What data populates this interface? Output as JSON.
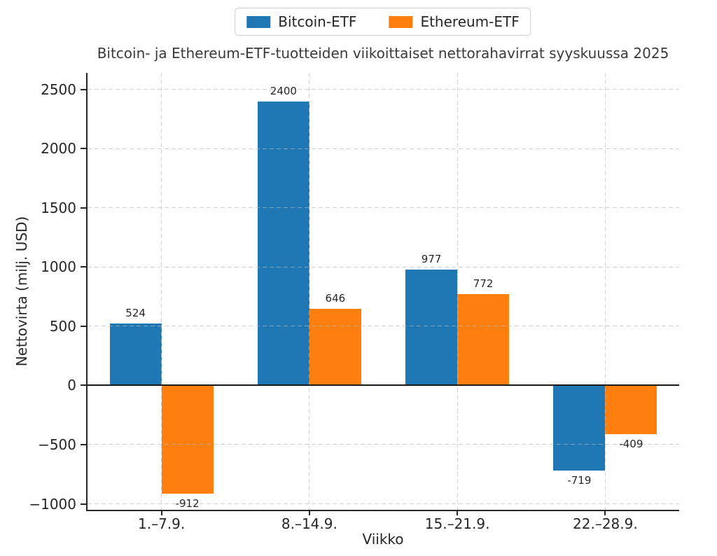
{
  "chart_data": {
    "type": "bar",
    "title": "Bitcoin- ja Ethereum-ETF-tuotteiden viikoittaiset nettorahavirrat syyskuussa 2025",
    "xlabel": "Viikko",
    "ylabel": "Nettovirta (milj. USD)",
    "categories": [
      "1.–7.9.",
      "8.–14.9.",
      "15.–21.9.",
      "22.–28.9."
    ],
    "series": [
      {
        "name": "Bitcoin-ETF",
        "color": "#1f77b4",
        "values": [
          524,
          2400,
          977,
          -719
        ]
      },
      {
        "name": "Ethereum-ETF",
        "color": "#ff7f0e",
        "values": [
          -912,
          646,
          772,
          -409
        ]
      }
    ],
    "yticks": [
      -1000,
      -500,
      0,
      500,
      1000,
      1500,
      2000,
      2500
    ],
    "ytick_labels": [
      "−1000",
      "−500",
      "0",
      "500",
      "1000",
      "1500",
      "2000",
      "2500"
    ],
    "ylim": [
      -1050,
      2640
    ],
    "grid": true,
    "grid_color": "#b0b0b0",
    "axis_color": "#262626",
    "background": "#ffffff",
    "legend_position": "top-center",
    "bar_labels": true
  }
}
